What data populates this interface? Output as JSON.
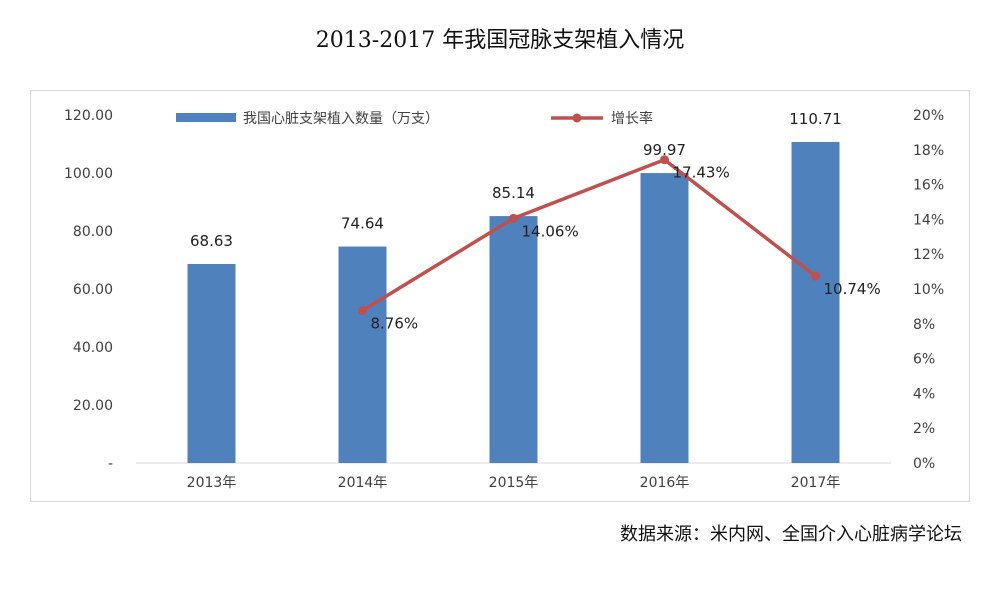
{
  "page": {
    "title": "2013-2017 年我国冠脉支架植入情况",
    "source": "数据来源：米内网、全国介入心脏病学论坛"
  },
  "chart_data": {
    "type": "bar+line",
    "categories": [
      "2013年",
      "2014年",
      "2015年",
      "2016年",
      "2017年"
    ],
    "series": [
      {
        "name": "我国心脏支架植入数量（万支）",
        "type": "bar",
        "axis": "left",
        "color": "#4f81bd",
        "values": [
          68.63,
          74.64,
          85.14,
          99.97,
          110.71
        ],
        "labels": [
          "68.63",
          "74.64",
          "85.14",
          "99.97",
          "110.71"
        ]
      },
      {
        "name": "增长率",
        "type": "line",
        "axis": "right",
        "color": "#c0504d",
        "values": [
          null,
          8.76,
          14.06,
          17.43,
          10.74
        ],
        "labels": [
          "",
          "8.76%",
          "14.06%",
          "17.43%",
          "10.74%"
        ]
      }
    ],
    "y_left": {
      "min": 0,
      "max": 120,
      "step": 20,
      "tick_labels": [
        "-",
        "20.00",
        "40.00",
        "60.00",
        "80.00",
        "100.00",
        "120.00"
      ]
    },
    "y_right": {
      "min": 0,
      "max": 20,
      "step": 2,
      "tick_labels": [
        "0%",
        "2%",
        "4%",
        "6%",
        "8%",
        "10%",
        "12%",
        "14%",
        "16%",
        "18%",
        "20%"
      ]
    },
    "grid": false,
    "legend_position": "top"
  }
}
